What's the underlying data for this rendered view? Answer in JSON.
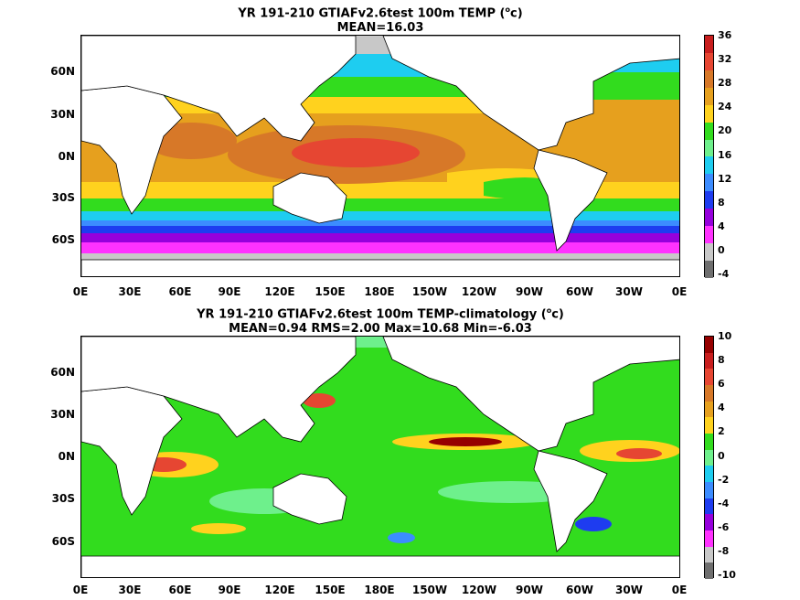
{
  "panel1": {
    "title_line1_pre": "YR 191-210 GTIAFv2.6test 100m TEMP (",
    "title_line1_sup": "o",
    "title_line1_post": "c)",
    "title_line2": "MEAN=16.03",
    "colorbar_ticks": [
      "36",
      "32",
      "28",
      "24",
      "20",
      "16",
      "12",
      "8",
      "4",
      "0",
      "-4"
    ],
    "colorbar_colors": [
      "#c81e1e",
      "#e64632",
      "#d77828",
      "#e6a01e",
      "#ffd21e",
      "#32dc1e",
      "#6ef08c",
      "#1ecdf0",
      "#3c8cff",
      "#1e3cf0",
      "#9600dc",
      "#ff32ff",
      "#c8c8c8",
      "#6e6e6e"
    ]
  },
  "panel2": {
    "title_line1_pre": "YR 191-210 GTIAFv2.6test 100m TEMP-climatology (",
    "title_line1_sup": "o",
    "title_line1_post": "c)",
    "title_line2": "MEAN=0.94   RMS=2.00   Max=10.68   Min=-6.03",
    "colorbar_ticks": [
      "10",
      "8",
      "6",
      "4",
      "2",
      "0",
      "-2",
      "-4",
      "-6",
      "-8",
      "-10"
    ],
    "colorbar_colors": [
      "#960000",
      "#c81e1e",
      "#e64632",
      "#d77828",
      "#e6a01e",
      "#ffd21e",
      "#32dc1e",
      "#6ef08c",
      "#1ecdf0",
      "#3c8cff",
      "#1e3cf0",
      "#9600dc",
      "#ff32ff",
      "#c8c8c8",
      "#6e6e6e"
    ]
  },
  "axes": {
    "lat_labels": [
      "60N",
      "30N",
      "0N",
      "30S",
      "60S"
    ],
    "lon_labels": [
      "0E",
      "30E",
      "60E",
      "90E",
      "120E",
      "150E",
      "180E",
      "150W",
      "120W",
      "90W",
      "60W",
      "30W",
      "0E"
    ]
  }
}
